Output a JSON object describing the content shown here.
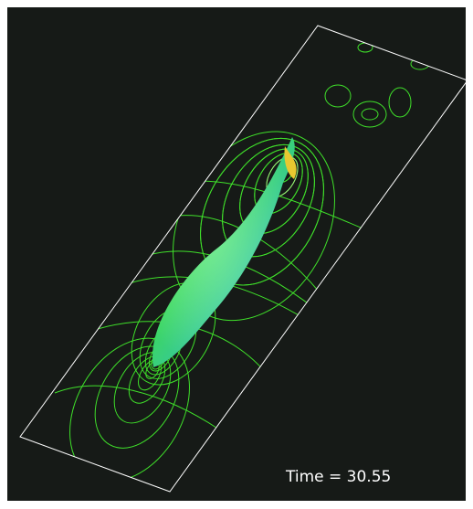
{
  "annotation": {
    "time_label": "Time = 30.55"
  }
}
